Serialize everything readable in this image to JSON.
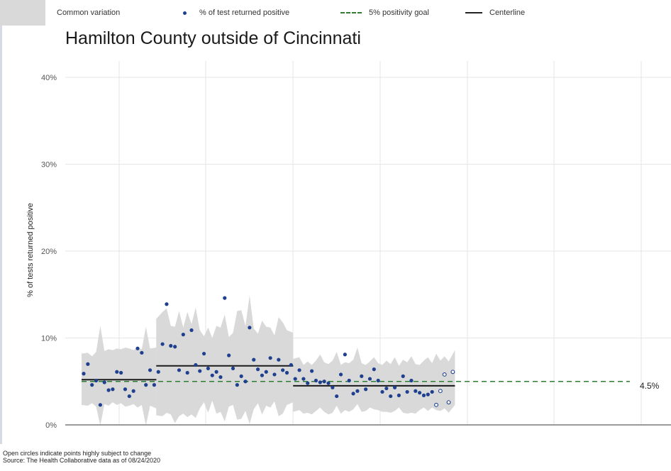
{
  "legend": {
    "band_label": "Common variation",
    "points_label": "% of test returned positive",
    "goal_label": "5% positivity goal",
    "centerline_label": "Centerline"
  },
  "footer": {
    "note": "Open circles indicate points highly subject to change",
    "source": "Source: The Health Collaborative data as of 08/24/2020"
  },
  "colors": {
    "points": "#1f3f8f",
    "band": "#d9d9d9",
    "goal": "#2e7d32",
    "centerline": "#1a1a1a",
    "grid": "#e6e6e6"
  },
  "chart_data": {
    "type": "scatter",
    "title": "Hamilton County outside of Cincinnati",
    "ylabel": "% of tests returned positive",
    "xlabel": "",
    "ylim": [
      0,
      40
    ],
    "y_ticks": [
      "0%",
      "10%",
      "20%",
      "30%",
      "40%"
    ],
    "grid": true,
    "legend_position": "top",
    "goal_value": 5,
    "end_label": "4.5%",
    "index_range": [
      0,
      131
    ],
    "series": [
      {
        "name": "% of test returned positive",
        "style": "filled",
        "points": [
          [
            0,
            5.9
          ],
          [
            1,
            7.0
          ],
          [
            2,
            4.6
          ],
          [
            3,
            5.1
          ],
          [
            4,
            2.3
          ],
          [
            5,
            4.9
          ],
          [
            6,
            4.0
          ],
          [
            7,
            4.1
          ],
          [
            8,
            6.1
          ],
          [
            9,
            6.0
          ],
          [
            10,
            4.1
          ],
          [
            11,
            3.3
          ],
          [
            12,
            3.9
          ],
          [
            13,
            8.8
          ],
          [
            14,
            8.3
          ],
          [
            15,
            4.6
          ],
          [
            16,
            6.3
          ],
          [
            17,
            4.6
          ],
          [
            18,
            6.1
          ],
          [
            19,
            9.3
          ],
          [
            20,
            13.9
          ],
          [
            21,
            9.1
          ],
          [
            22,
            9.0
          ],
          [
            23,
            6.3
          ],
          [
            24,
            10.4
          ],
          [
            25,
            6.0
          ],
          [
            26,
            10.9
          ],
          [
            27,
            6.9
          ],
          [
            28,
            6.2
          ],
          [
            29,
            8.2
          ],
          [
            30,
            6.5
          ],
          [
            31,
            5.7
          ],
          [
            32,
            6.1
          ],
          [
            33,
            5.5
          ],
          [
            34,
            14.6
          ],
          [
            35,
            8.0
          ],
          [
            36,
            6.5
          ],
          [
            37,
            4.6
          ],
          [
            38,
            5.6
          ],
          [
            39,
            5.0
          ],
          [
            40,
            11.2
          ],
          [
            41,
            7.5
          ],
          [
            42,
            6.4
          ],
          [
            43,
            5.7
          ],
          [
            44,
            6.1
          ],
          [
            45,
            7.7
          ],
          [
            46,
            5.8
          ],
          [
            47,
            7.5
          ],
          [
            48,
            6.3
          ],
          [
            49,
            6.0
          ],
          [
            50,
            6.9
          ],
          [
            51,
            5.3
          ],
          [
            52,
            6.3
          ],
          [
            53,
            5.3
          ],
          [
            54,
            4.8
          ],
          [
            55,
            6.2
          ],
          [
            56,
            5.1
          ],
          [
            57,
            4.9
          ],
          [
            58,
            5.0
          ],
          [
            59,
            4.8
          ],
          [
            60,
            4.3
          ],
          [
            61,
            3.3
          ],
          [
            62,
            5.8
          ],
          [
            63,
            8.1
          ],
          [
            64,
            5.1
          ],
          [
            65,
            3.6
          ],
          [
            66,
            3.9
          ],
          [
            67,
            5.6
          ],
          [
            68,
            4.1
          ],
          [
            69,
            5.3
          ],
          [
            70,
            6.4
          ],
          [
            71,
            5.1
          ],
          [
            72,
            3.8
          ],
          [
            73,
            4.2
          ],
          [
            74,
            3.3
          ],
          [
            75,
            4.3
          ],
          [
            76,
            3.4
          ],
          [
            77,
            5.6
          ],
          [
            78,
            3.8
          ],
          [
            79,
            5.1
          ],
          [
            80,
            3.9
          ],
          [
            81,
            3.7
          ],
          [
            82,
            3.4
          ],
          [
            83,
            3.5
          ],
          [
            84,
            3.8
          ]
        ]
      },
      {
        "name": "Open circles indicate points highly subject to change",
        "style": "open",
        "points": [
          [
            85,
            2.3
          ],
          [
            86,
            3.9
          ],
          [
            87,
            5.8
          ],
          [
            88,
            2.6
          ],
          [
            89,
            6.1
          ]
        ]
      }
    ],
    "centerline": [
      {
        "from": 0,
        "to": 17,
        "value": 5.2
      },
      {
        "from": 18,
        "to": 50,
        "value": 6.8
      },
      {
        "from": 51,
        "to": 89,
        "value": 4.5
      }
    ],
    "band": [
      {
        "from": 0,
        "to": 17,
        "upper": [
          8.2,
          8.3,
          7.9,
          8.4,
          11.4,
          8.5,
          8.7,
          8.6,
          8.8,
          8.7,
          8.9,
          8.8,
          8.6,
          8.9,
          8.7,
          11.3,
          8.8,
          8.9
        ],
        "lower": [
          2.3,
          2.2,
          2.5,
          2.1,
          -0.1,
          2.4,
          2.2,
          2.6,
          2.3,
          2.5,
          2.1,
          2.2,
          2.4,
          2.0,
          2.3,
          -0.1,
          2.2,
          1.9
        ]
      },
      {
        "from": 18,
        "to": 50,
        "upper": [
          12.2,
          13.0,
          13.4,
          11.4,
          11.3,
          13.1,
          11.2,
          13.0,
          11.6,
          13.5,
          10.9,
          10.2,
          11.2,
          10.0,
          11.4,
          11.2,
          12.7,
          10.1,
          10.6,
          13.1,
          13.2,
          11.4,
          14.9,
          11.1,
          10.5,
          12.0,
          11.3,
          11.2,
          10.3,
          12.4,
          11.8,
          10.9,
          10.6
        ],
        "lower": [
          1.1,
          1.0,
          1.4,
          1.2,
          0.2,
          1.0,
          1.3,
          0.9,
          1.2,
          0.8,
          1.9,
          2.6,
          1.4,
          2.8,
          1.3,
          1.5,
          0.4,
          2.1,
          2.3,
          0.6,
          0.7,
          1.6,
          0.1,
          1.8,
          2.5,
          1.2,
          2.2,
          2.0,
          2.7,
          1.0,
          1.3,
          2.3,
          2.6
        ]
      },
      {
        "from": 51,
        "to": 89,
        "upper": [
          7.6,
          7.8,
          6.9,
          7.3,
          6.9,
          7.4,
          8.1,
          7.2,
          7.0,
          7.4,
          8.4,
          6.9,
          7.2,
          7.1,
          7.5,
          8.9,
          7.1,
          6.9,
          7.3,
          7.8,
          7.1,
          6.9,
          7.4,
          7.0,
          7.8,
          6.8,
          7.5,
          7.2,
          7.9,
          7.0,
          6.9,
          7.4,
          7.8,
          7.1,
          8.2,
          7.4,
          7.9,
          7.3,
          8.6
        ],
        "lower": [
          1.5,
          1.7,
          1.3,
          1.4,
          1.2,
          1.6,
          2.0,
          1.5,
          1.2,
          1.4,
          2.2,
          1.3,
          1.7,
          1.5,
          1.8,
          2.4,
          1.5,
          1.6,
          2.0,
          1.8,
          1.7,
          1.5,
          1.5,
          1.4,
          1.6,
          2.0,
          1.4,
          1.3,
          1.4,
          1.3,
          1.7,
          2.0,
          1.6,
          2.0,
          1.7,
          1.6,
          1.9,
          1.4,
          2.3
        ]
      }
    ]
  }
}
